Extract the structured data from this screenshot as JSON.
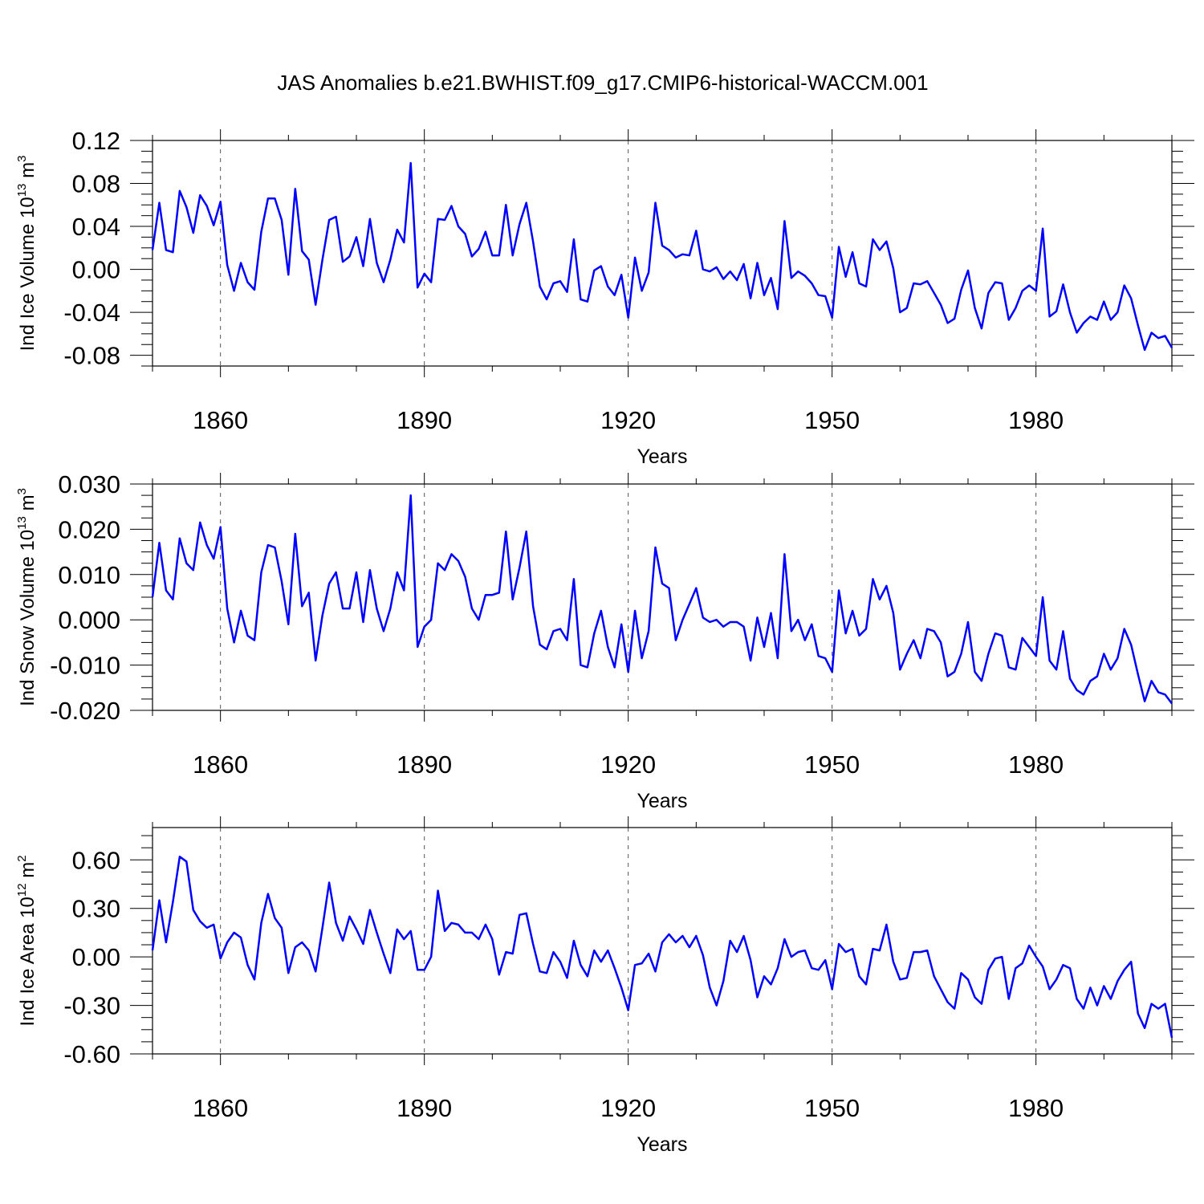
{
  "title": "JAS Anomalies b.e21.BWHIST.f09_g17.CMIP6-historical-WACCM.001",
  "line_color": "#0000ff",
  "chart_data": [
    {
      "type": "line",
      "ylabel": "Ind Ice Volume 10",
      "ylabel_sup": "13",
      "ylabel_unit": "m",
      "ylabel_unit_sup": "3",
      "xlabel": "Years",
      "xlim": [
        1850,
        2000
      ],
      "ylim": [
        -0.09,
        0.12
      ],
      "xticks": [
        1860,
        1890,
        1920,
        1950,
        1980
      ],
      "xtick_labels": [
        "1860",
        "1890",
        "1920",
        "1950",
        "1980"
      ],
      "yticks": [
        -0.08,
        -0.04,
        0.0,
        0.04,
        0.08,
        0.12
      ],
      "ytick_labels": [
        "-0.08",
        "-0.04",
        "0.00",
        "0.04",
        "0.08",
        "0.12"
      ],
      "x_start": 1850,
      "series": [
        {
          "values": [
            0.018,
            0.062,
            0.018,
            0.016,
            0.073,
            0.058,
            0.034,
            0.069,
            0.059,
            0.041,
            0.063,
            0.004,
            -0.02,
            0.006,
            -0.012,
            -0.019,
            0.035,
            0.066,
            0.066,
            0.046,
            -0.005,
            0.075,
            0.017,
            0.009,
            -0.033,
            0.009,
            0.046,
            0.049,
            0.007,
            0.012,
            0.03,
            0.003,
            0.047,
            0.006,
            -0.012,
            0.009,
            0.037,
            0.025,
            0.099,
            -0.017,
            -0.004,
            -0.012,
            0.047,
            0.046,
            0.059,
            0.04,
            0.033,
            0.012,
            0.019,
            0.035,
            0.013,
            0.013,
            0.06,
            0.013,
            0.042,
            0.062,
            0.026,
            -0.016,
            -0.028,
            -0.013,
            -0.011,
            -0.021,
            0.028,
            -0.028,
            -0.03,
            -0.001,
            0.003,
            -0.016,
            -0.024,
            -0.005,
            -0.045,
            0.011,
            -0.02,
            -0.003,
            0.062,
            0.022,
            0.018,
            0.011,
            0.014,
            0.013,
            0.036,
            0.0,
            -0.002,
            0.002,
            -0.009,
            -0.002,
            -0.01,
            0.005,
            -0.027,
            0.006,
            -0.024,
            -0.008,
            -0.037,
            0.045,
            -0.008,
            -0.002,
            -0.006,
            -0.013,
            -0.024,
            -0.025,
            -0.045,
            0.021,
            -0.007,
            0.016,
            -0.013,
            -0.016,
            0.028,
            0.018,
            0.026,
            0.001,
            -0.04,
            -0.036,
            -0.013,
            -0.014,
            -0.011,
            -0.022,
            -0.033,
            -0.05,
            -0.046,
            -0.019,
            -0.001,
            -0.036,
            -0.055,
            -0.022,
            -0.012,
            -0.013,
            -0.047,
            -0.036,
            -0.02,
            -0.015,
            -0.02,
            0.038,
            -0.044,
            -0.039,
            -0.014,
            -0.04,
            -0.059,
            -0.05,
            -0.044,
            -0.047,
            -0.03,
            -0.047,
            -0.04,
            -0.015,
            -0.027,
            -0.052,
            -0.075,
            -0.059,
            -0.064,
            -0.062,
            -0.073
          ]
        }
      ]
    },
    {
      "type": "line",
      "ylabel": "Ind Snow Volume 10",
      "ylabel_sup": "13",
      "ylabel_unit": "m",
      "ylabel_unit_sup": "3",
      "xlabel": "Years",
      "xlim": [
        1850,
        2000
      ],
      "ylim": [
        -0.02,
        0.03
      ],
      "xticks": [
        1860,
        1890,
        1920,
        1950,
        1980
      ],
      "xtick_labels": [
        "1860",
        "1890",
        "1920",
        "1950",
        "1980"
      ],
      "yticks": [
        -0.02,
        -0.01,
        0.0,
        0.01,
        0.02,
        0.03
      ],
      "ytick_labels": [
        "-0.020",
        "-0.010",
        "0.000",
        "0.010",
        "0.020",
        "0.030"
      ],
      "x_start": 1850,
      "series": [
        {
          "values": [
            0.005,
            0.017,
            0.0065,
            0.0045,
            0.018,
            0.0125,
            0.011,
            0.0215,
            0.0165,
            0.0135,
            0.0205,
            0.0025,
            -0.005,
            0.002,
            -0.0035,
            -0.0045,
            0.0105,
            0.0165,
            0.016,
            0.0085,
            -0.001,
            0.019,
            0.003,
            0.006,
            -0.009,
            0.001,
            0.008,
            0.0105,
            0.0025,
            0.0025,
            0.0105,
            -0.0005,
            0.011,
            0.0025,
            -0.0025,
            0.0025,
            0.0105,
            0.0065,
            0.0275,
            -0.006,
            -0.0015,
            0.0,
            0.0125,
            0.011,
            0.0145,
            0.013,
            0.0095,
            0.0025,
            0.0,
            0.0055,
            0.0055,
            0.006,
            0.0195,
            0.0045,
            0.0115,
            0.0195,
            0.003,
            -0.0055,
            -0.0065,
            -0.0025,
            -0.002,
            -0.0045,
            0.009,
            -0.01,
            -0.0105,
            -0.003,
            0.002,
            -0.006,
            -0.0105,
            -0.001,
            -0.0115,
            0.002,
            -0.0085,
            -0.0025,
            0.016,
            0.008,
            0.007,
            -0.0045,
            0.0,
            0.0035,
            0.007,
            0.0005,
            -0.0005,
            0.0,
            -0.0015,
            -0.0005,
            -0.0005,
            -0.0015,
            -0.009,
            0.0005,
            -0.006,
            0.0015,
            -0.0085,
            0.0145,
            -0.0025,
            0.0,
            -0.0045,
            -0.001,
            -0.008,
            -0.0085,
            -0.0115,
            0.0065,
            -0.003,
            0.002,
            -0.0035,
            -0.002,
            0.009,
            0.0045,
            0.0075,
            0.0015,
            -0.011,
            -0.0075,
            -0.0045,
            -0.0085,
            -0.002,
            -0.0025,
            -0.005,
            -0.0125,
            -0.0115,
            -0.0075,
            -0.0005,
            -0.0115,
            -0.0135,
            -0.0075,
            -0.003,
            -0.0035,
            -0.0105,
            -0.011,
            -0.004,
            -0.006,
            -0.008,
            0.005,
            -0.009,
            -0.011,
            -0.0025,
            -0.013,
            -0.0155,
            -0.0165,
            -0.0135,
            -0.0125,
            -0.0075,
            -0.011,
            -0.0085,
            -0.002,
            -0.0055,
            -0.012,
            -0.018,
            -0.0135,
            -0.016,
            -0.0165,
            -0.0185
          ]
        }
      ]
    },
    {
      "type": "line",
      "ylabel": "Ind Ice Area 10",
      "ylabel_sup": "12",
      "ylabel_unit": "m",
      "ylabel_unit_sup": "2",
      "xlabel": "Years",
      "xlim": [
        1850,
        2000
      ],
      "ylim": [
        -0.6,
        0.8
      ],
      "xticks": [
        1860,
        1890,
        1920,
        1950,
        1980
      ],
      "xtick_labels": [
        "1860",
        "1890",
        "1920",
        "1950",
        "1980"
      ],
      "yticks": [
        -0.6,
        -0.3,
        0.0,
        0.3,
        0.6
      ],
      "ytick_labels": [
        "-0.60",
        "-0.30",
        "0.00",
        "0.30",
        "0.60"
      ],
      "x_start": 1850,
      "series": [
        {
          "values": [
            0.04,
            0.35,
            0.09,
            0.34,
            0.62,
            0.59,
            0.29,
            0.22,
            0.18,
            0.2,
            -0.01,
            0.09,
            0.15,
            0.12,
            -0.05,
            -0.14,
            0.21,
            0.39,
            0.24,
            0.18,
            -0.1,
            0.06,
            0.09,
            0.04,
            -0.09,
            0.18,
            0.46,
            0.21,
            0.1,
            0.25,
            0.17,
            0.08,
            0.29,
            0.15,
            0.02,
            -0.1,
            0.17,
            0.11,
            0.16,
            -0.08,
            -0.08,
            0.0,
            0.41,
            0.16,
            0.21,
            0.2,
            0.15,
            0.15,
            0.11,
            0.2,
            0.11,
            -0.11,
            0.03,
            0.02,
            0.26,
            0.27,
            0.08,
            -0.09,
            -0.1,
            0.03,
            -0.03,
            -0.13,
            0.1,
            -0.05,
            -0.12,
            0.04,
            -0.03,
            0.04,
            -0.07,
            -0.19,
            -0.33,
            -0.05,
            -0.04,
            0.02,
            -0.09,
            0.09,
            0.14,
            0.09,
            0.13,
            0.06,
            0.13,
            0.01,
            -0.19,
            -0.3,
            -0.15,
            0.1,
            0.03,
            0.13,
            -0.02,
            -0.25,
            -0.12,
            -0.17,
            -0.07,
            0.11,
            0.0,
            0.03,
            0.04,
            -0.07,
            -0.08,
            -0.02,
            -0.2,
            0.08,
            0.03,
            0.05,
            -0.12,
            -0.17,
            0.05,
            0.04,
            0.2,
            -0.03,
            -0.14,
            -0.13,
            0.03,
            0.03,
            0.04,
            -0.12,
            -0.2,
            -0.28,
            -0.32,
            -0.1,
            -0.14,
            -0.25,
            -0.29,
            -0.08,
            -0.01,
            0.0,
            -0.26,
            -0.07,
            -0.04,
            0.07,
            0.0,
            -0.06,
            -0.2,
            -0.14,
            -0.05,
            -0.07,
            -0.26,
            -0.32,
            -0.19,
            -0.3,
            -0.18,
            -0.26,
            -0.15,
            -0.08,
            -0.03,
            -0.35,
            -0.44,
            -0.29,
            -0.32,
            -0.29,
            -0.5
          ]
        }
      ]
    }
  ]
}
